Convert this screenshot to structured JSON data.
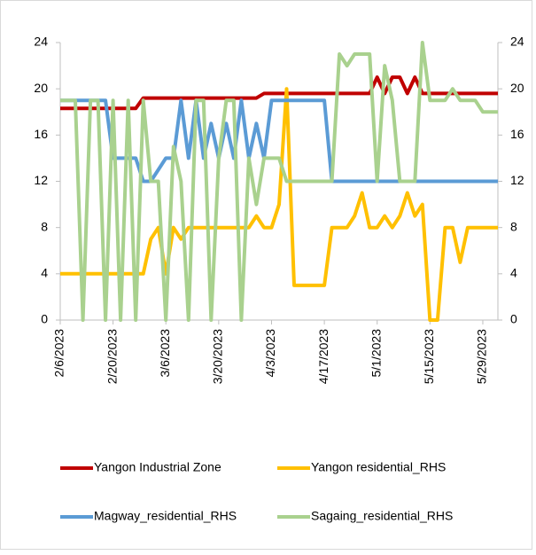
{
  "chart_data": {
    "type": "line",
    "x": [
      "2/6/2023",
      "2/8/2023",
      "2/10/2023",
      "2/12/2023",
      "2/14/2023",
      "2/16/2023",
      "2/18/2023",
      "2/20/2023",
      "2/22/2023",
      "2/24/2023",
      "2/26/2023",
      "2/28/2023",
      "3/2/2023",
      "3/4/2023",
      "3/6/2023",
      "3/8/2023",
      "3/10/2023",
      "3/12/2023",
      "3/14/2023",
      "3/16/2023",
      "3/18/2023",
      "3/20/2023",
      "3/22/2023",
      "3/24/2023",
      "3/26/2023",
      "3/28/2023",
      "3/30/2023",
      "4/1/2023",
      "4/3/2023",
      "4/5/2023",
      "4/7/2023",
      "4/9/2023",
      "4/11/2023",
      "4/13/2023",
      "4/15/2023",
      "4/17/2023",
      "4/19/2023",
      "4/21/2023",
      "4/23/2023",
      "4/25/2023",
      "4/27/2023",
      "4/29/2023",
      "5/1/2023",
      "5/3/2023",
      "5/5/2023",
      "5/7/2023",
      "5/9/2023",
      "5/11/2023",
      "5/13/2023",
      "5/15/2023",
      "5/17/2023",
      "5/19/2023",
      "5/21/2023",
      "5/23/2023",
      "5/25/2023",
      "5/27/2023",
      "5/29/2023",
      "5/31/2023",
      "6/2/2023"
    ],
    "series": [
      {
        "name": "Yangon Industrial Zone",
        "color": "#c00000",
        "axis": "y",
        "values": [
          18.3,
          18.3,
          18.3,
          18.3,
          18.3,
          18.3,
          18.3,
          18.3,
          18.3,
          18.3,
          18.3,
          19.2,
          19.2,
          19.2,
          19.2,
          19.2,
          19.2,
          19.2,
          19.2,
          19.2,
          19.2,
          19.2,
          19.2,
          19.2,
          19.2,
          19.2,
          19.2,
          19.6,
          19.6,
          19.6,
          19.6,
          19.6,
          19.6,
          19.6,
          19.6,
          19.6,
          19.6,
          19.6,
          19.6,
          19.6,
          19.6,
          19.6,
          21,
          19.6,
          21,
          21,
          19.6,
          21,
          19.6,
          19.6,
          19.6,
          19.6,
          19.6,
          19.6,
          19.6,
          19.6,
          19.6,
          19.6,
          19.6
        ]
      },
      {
        "name": "Yangon residential_RHS",
        "color": "#ffc000",
        "axis": "y2",
        "values": [
          4,
          4,
          4,
          4,
          4,
          4,
          4,
          4,
          4,
          4,
          4,
          4,
          7,
          8,
          4,
          8,
          7,
          8,
          8,
          8,
          8,
          8,
          8,
          8,
          8,
          8,
          9,
          8,
          8,
          10,
          20,
          3,
          3,
          3,
          3,
          3,
          8,
          8,
          8,
          9,
          11,
          8,
          8,
          9,
          8,
          9,
          11,
          9,
          10,
          0,
          0,
          8,
          8,
          5,
          8,
          8,
          8,
          8,
          8
        ]
      },
      {
        "name": "Magway_residential_RHS",
        "color": "#5b9bd5",
        "axis": "y2",
        "values": [
          19,
          19,
          19,
          19,
          19,
          19,
          19,
          14,
          14,
          14,
          14,
          12,
          12,
          13,
          14,
          14,
          19,
          14,
          19,
          14,
          17,
          14,
          17,
          14,
          19,
          14,
          17,
          14,
          19,
          19,
          19,
          19,
          19,
          19,
          19,
          19,
          12,
          12,
          12,
          12,
          12,
          12,
          12,
          12,
          12,
          12,
          12,
          12,
          12,
          12,
          12,
          12,
          12,
          12,
          12,
          12,
          12,
          12,
          12
        ]
      },
      {
        "name": "Sagaing_residential_RHS",
        "color": "#a9d18e",
        "axis": "y2",
        "values": [
          19,
          19,
          19,
          0,
          19,
          19,
          0,
          19,
          0,
          19,
          0,
          19,
          12,
          12,
          0,
          15,
          12,
          0,
          19,
          19,
          0,
          14,
          19,
          19,
          0,
          14,
          10,
          14,
          14,
          14,
          12,
          12,
          12,
          12,
          12,
          12,
          12,
          23,
          22,
          23,
          23,
          23,
          12,
          22,
          19,
          12,
          12,
          12,
          24,
          19,
          19,
          19,
          20,
          19,
          19,
          19,
          18,
          18,
          18
        ]
      }
    ],
    "xlim": [
      "2/6/2023",
      "6/2/2023"
    ],
    "xticks": [
      "2/6/2023",
      "2/20/2023",
      "3/6/2023",
      "3/20/2023",
      "4/3/2023",
      "4/17/2023",
      "5/1/2023",
      "5/15/2023",
      "5/29/2023"
    ],
    "ylim": [
      0,
      24
    ],
    "yticks": [
      0,
      4,
      8,
      12,
      16,
      20,
      24
    ],
    "y2lim": [
      0,
      24
    ],
    "y2ticks": [
      0,
      4,
      8,
      12,
      16,
      20,
      24
    ],
    "grid": false,
    "legend": "bottom"
  }
}
